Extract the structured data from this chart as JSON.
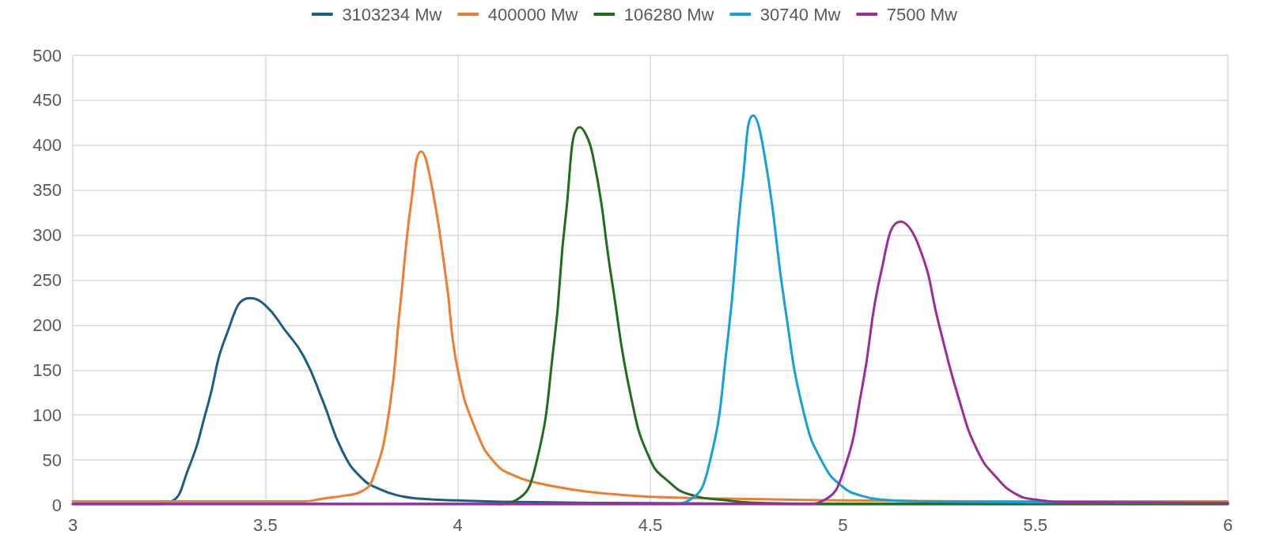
{
  "chart_data": {
    "type": "line",
    "xlim": [
      3,
      6
    ],
    "xticks": [
      3,
      3.5,
      4,
      4.5,
      5,
      5.5,
      6
    ],
    "ylim": [
      0,
      500
    ],
    "yticks": [
      0,
      50,
      100,
      150,
      200,
      250,
      300,
      350,
      400,
      450,
      500
    ],
    "grid": true,
    "legend": "top",
    "marker": "none",
    "line_style": "solid",
    "series": [
      {
        "name": "3103234 Mw",
        "color": "#1b5e84",
        "x": [
          3,
          3.2,
          3.25,
          3.3,
          3.35,
          3.4,
          3.46,
          3.5,
          3.55,
          3.6,
          3.65,
          3.7,
          3.75,
          3.8,
          3.85,
          3.9,
          4,
          4.2,
          4.5,
          5,
          6
        ],
        "values": [
          1,
          1,
          3,
          40,
          110,
          190,
          230,
          222,
          195,
          165,
          115,
          60,
          30,
          17,
          10,
          7,
          5,
          3,
          2,
          1,
          1
        ]
      },
      {
        "name": "400000 Mw",
        "color": "#ed7d31",
        "x": [
          3,
          3.6,
          3.65,
          3.7,
          3.75,
          3.78,
          3.82,
          3.85,
          3.88,
          3.905,
          3.93,
          3.97,
          4,
          4.05,
          4.1,
          4.15,
          4.2,
          4.3,
          4.4,
          4.5,
          4.7,
          5,
          5.5,
          6
        ],
        "values": [
          4,
          4,
          7,
          10,
          15,
          30,
          100,
          220,
          340,
          393,
          360,
          250,
          150,
          80,
          45,
          32,
          25,
          17,
          12,
          9,
          7,
          5,
          4,
          4
        ]
      },
      {
        "name": "106280 Mw",
        "color": "#1e6e1e",
        "x": [
          4.1,
          4.15,
          4.2,
          4.25,
          4.28,
          4.317,
          4.35,
          4.4,
          4.45,
          4.5,
          4.55,
          4.6,
          4.7,
          4.8,
          5,
          6
        ],
        "values": [
          1,
          5,
          40,
          180,
          320,
          420,
          390,
          250,
          120,
          50,
          25,
          12,
          5,
          2,
          1,
          1
        ]
      },
      {
        "name": "30740 Mw",
        "color": "#14a0d8",
        "x": [
          3,
          4.55,
          4.6,
          4.65,
          4.7,
          4.74,
          4.767,
          4.8,
          4.85,
          4.9,
          4.95,
          5,
          5.05,
          5.1,
          5.2,
          5.5,
          6
        ],
        "values": [
          1,
          1,
          5,
          40,
          180,
          360,
          433,
          380,
          220,
          100,
          45,
          20,
          10,
          6,
          4,
          3,
          2
        ]
      },
      {
        "name": "7500 Mw",
        "color": "#9b2d99",
        "x": [
          3,
          4.9,
          4.95,
          5,
          5.05,
          5.1,
          5.15,
          5.2,
          5.25,
          5.3,
          5.35,
          5.4,
          5.45,
          5.5,
          5.6,
          6
        ],
        "values": [
          1,
          1,
          5,
          35,
          130,
          260,
          315,
          285,
          200,
          120,
          60,
          30,
          12,
          6,
          3,
          2
        ]
      }
    ]
  }
}
